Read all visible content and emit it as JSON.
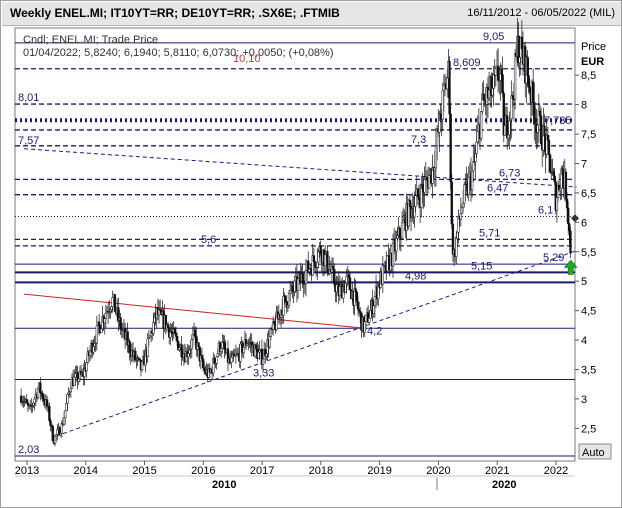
{
  "header": {
    "title": "Weekly ENEL.MI; IT10YT=RR; DE10YT=RR; .SX6E; .FTMIB",
    "date_range": "16/11/2012 - 06/05/2022 (MIL)"
  },
  "legend": {
    "line1": "Cndl; ENEL.MI; Trade Price",
    "line2": "01/04/2022; 5,8240; 6,1940; 5,8110; 6,0730; +0,0050; (+0,08%)",
    "obscured": "10,10"
  },
  "axis": {
    "price_label": "Price",
    "currency": "EUR",
    "auto_button": "Auto",
    "decade_labels": [
      "2010",
      "2020"
    ],
    "y_ticks": [
      "8,5",
      "8",
      "7,5",
      "7",
      "6,5",
      "6",
      "5,5",
      "5",
      "4,5",
      "4",
      "3,5",
      "3",
      "2,5"
    ],
    "x_ticks": [
      "2013",
      "2014",
      "2015",
      "2016",
      "2017",
      "2018",
      "2019",
      "2020",
      "2021",
      "2022"
    ]
  },
  "chart_data": {
    "type": "candlestick",
    "symbol": "ENEL.MI",
    "currency": "EUR",
    "x_range": [
      2013.0,
      2022.35
    ],
    "ylim": [
      2.03,
      9.2
    ],
    "price_path": [
      [
        2012.9,
        3.05
      ],
      [
        2013.05,
        2.8
      ],
      [
        2013.2,
        3.2
      ],
      [
        2013.35,
        2.85
      ],
      [
        2013.45,
        2.3
      ],
      [
        2013.6,
        2.55
      ],
      [
        2013.75,
        3.3
      ],
      [
        2013.95,
        3.4
      ],
      [
        2014.1,
        3.9
      ],
      [
        2014.3,
        4.4
      ],
      [
        2014.45,
        4.7
      ],
      [
        2014.6,
        4.2
      ],
      [
        2014.8,
        3.75
      ],
      [
        2014.95,
        3.5
      ],
      [
        2015.2,
        4.45
      ],
      [
        2015.35,
        4.3
      ],
      [
        2015.5,
        4.05
      ],
      [
        2015.7,
        3.75
      ],
      [
        2015.85,
        4.05
      ],
      [
        2016.0,
        3.5
      ],
      [
        2016.1,
        3.4
      ],
      [
        2016.3,
        3.95
      ],
      [
        2016.45,
        3.6
      ],
      [
        2016.6,
        3.75
      ],
      [
        2016.75,
        4.0
      ],
      [
        2016.9,
        3.8
      ],
      [
        2017.0,
        3.7
      ],
      [
        2017.2,
        4.2
      ],
      [
        2017.35,
        4.6
      ],
      [
        2017.5,
        4.8
      ],
      [
        2017.7,
        5.1
      ],
      [
        2017.85,
        5.3
      ],
      [
        2018.0,
        5.55
      ],
      [
        2018.15,
        5.2
      ],
      [
        2018.3,
        4.8
      ],
      [
        2018.45,
        5.0
      ],
      [
        2018.6,
        4.65
      ],
      [
        2018.72,
        4.2
      ],
      [
        2018.85,
        4.5
      ],
      [
        2019.0,
        5.0
      ],
      [
        2019.2,
        5.4
      ],
      [
        2019.45,
        6.1
      ],
      [
        2019.7,
        6.5
      ],
      [
        2019.9,
        6.9
      ],
      [
        2020.1,
        8.2
      ],
      [
        2020.18,
        8.609
      ],
      [
        2020.22,
        6.0
      ],
      [
        2020.26,
        5.4
      ],
      [
        2020.4,
        6.3
      ],
      [
        2020.6,
        6.9
      ],
      [
        2020.75,
        8.0
      ],
      [
        2020.95,
        8.3
      ],
      [
        2021.05,
        8.6
      ],
      [
        2021.12,
        7.5
      ],
      [
        2021.25,
        8.0
      ],
      [
        2021.35,
        9.05
      ],
      [
        2021.5,
        8.6
      ],
      [
        2021.65,
        7.8
      ],
      [
        2021.8,
        7.4
      ],
      [
        2021.9,
        7.0
      ],
      [
        2022.0,
        6.4
      ],
      [
        2022.1,
        6.9
      ],
      [
        2022.18,
        6.5
      ],
      [
        2022.25,
        5.5
      ],
      [
        2022.3,
        6.07
      ]
    ],
    "last_candle": {
      "date": "01/04/2022",
      "open": 5.824,
      "high": 6.194,
      "low": 5.811,
      "close": 6.073,
      "change": 0.005,
      "change_pct": 0.08
    },
    "horizontal_levels": [
      {
        "value": 9.05,
        "label": "9,05",
        "style": "solid",
        "color": "#1a1a6e"
      },
      {
        "value": 8.609,
        "label": "8,609",
        "style": "dashed",
        "color": "#1a1a6e"
      },
      {
        "value": 8.01,
        "label": "8,01",
        "style": "dashed",
        "color": "#1a1a6e"
      },
      {
        "value": 7.735,
        "label": "7,735",
        "style": "dotted-thick",
        "color": "#1a1a6e"
      },
      {
        "value": 7.57,
        "label": "7,57",
        "style": "dashed",
        "color": "#1a1a6e"
      },
      {
        "value": 7.3,
        "label": "7,3",
        "style": "dashed",
        "color": "#1a1a6e"
      },
      {
        "value": 6.73,
        "label": "6,73",
        "style": "dashed",
        "color": "#1a1a6e"
      },
      {
        "value": 6.47,
        "label": "6,47",
        "style": "dashed",
        "color": "#1a1a6e"
      },
      {
        "value": 6.1,
        "label": "6,1",
        "style": "dotted",
        "color": "#1a1a6e"
      },
      {
        "value": 5.71,
        "label": "5,71",
        "style": "dashed",
        "color": "#1a1a6e"
      },
      {
        "value": 5.6,
        "label": "5,6",
        "style": "dashed",
        "color": "#1a1a6e"
      },
      {
        "value": 5.29,
        "label": "5,29",
        "style": "solid",
        "color": "#1a1a6e"
      },
      {
        "value": 5.15,
        "label": "5,15",
        "style": "solid-thick",
        "color": "#1a1a6e"
      },
      {
        "value": 4.98,
        "label": "4,98",
        "style": "solid-thick",
        "color": "#1a1a6e"
      },
      {
        "value": 4.2,
        "label": "4,2",
        "style": "solid",
        "color": "#1a1a6e"
      },
      {
        "value": 3.33,
        "label": "3,33",
        "style": "solid",
        "color": "#1a1a6e"
      },
      {
        "value": 2.03,
        "label": "2,03",
        "style": "solid",
        "color": "#1a1a6e"
      }
    ],
    "trendlines": [
      {
        "name": "rising-support",
        "from": [
          2013.5,
          2.37
        ],
        "to": [
          2022.35,
          5.52
        ],
        "style": "dashed",
        "color": "#1a1a8c"
      },
      {
        "name": "falling-resistance",
        "from": [
          2012.95,
          7.25
        ],
        "to": [
          2022.35,
          6.6
        ],
        "style": "dashed",
        "color": "#1a1a8c"
      },
      {
        "name": "red-trendline",
        "from": [
          2012.95,
          4.78
        ],
        "to": [
          2018.75,
          4.2
        ],
        "style": "solid",
        "color": "#cc2222"
      }
    ],
    "marker": {
      "type": "up-arrow",
      "x": 2022.25,
      "y": 5.15,
      "color": "#22aa22"
    },
    "current_value_marker": {
      "y": 6.07,
      "shape": "diamond"
    }
  }
}
